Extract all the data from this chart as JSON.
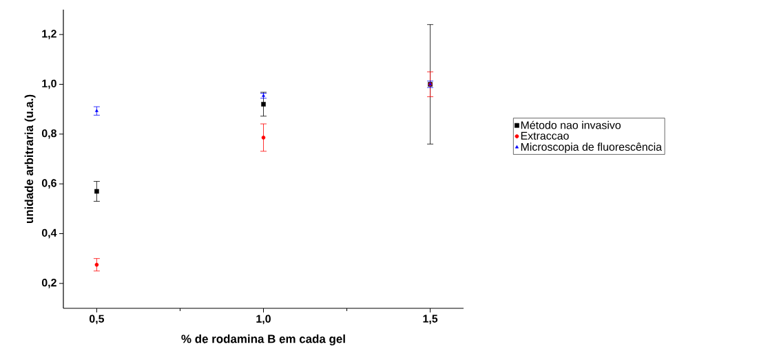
{
  "chart_data": {
    "type": "scatter",
    "xlabel": "% de rodamina B em cada gel",
    "ylabel": "unidade arbitraria (u.a.)",
    "x": [
      0.5,
      1.0,
      1.5
    ],
    "series": [
      {
        "name": "Método nao invasivo",
        "color": "#000000",
        "marker": "square",
        "values": [
          0.57,
          0.92,
          1.0
        ],
        "errors": [
          0.04,
          0.048,
          0.24
        ]
      },
      {
        "name": "Extraccao",
        "color": "#ff0000",
        "marker": "circle",
        "values": [
          0.275,
          0.786,
          1.0
        ],
        "errors": [
          0.025,
          0.055,
          0.05
        ]
      },
      {
        "name": "Microscopia de fluorescência",
        "color": "#0000ff",
        "marker": "triangle",
        "values": [
          0.893,
          0.954,
          1.0
        ],
        "errors": [
          0.017,
          0.01,
          0.013
        ]
      }
    ],
    "xlim": [
      0.4,
      1.6
    ],
    "ylim": [
      0.1,
      1.3
    ],
    "xticks": [
      {
        "value": 0.5,
        "label": "0,5"
      },
      {
        "value": 0.75,
        "label": null
      },
      {
        "value": 1.0,
        "label": "1,0"
      },
      {
        "value": 1.25,
        "label": null
      },
      {
        "value": 1.5,
        "label": "1,5"
      }
    ],
    "yticks": [
      {
        "value": 0.2,
        "label": "0,2"
      },
      {
        "value": 0.4,
        "label": "0,4"
      },
      {
        "value": 0.6,
        "label": "0,6"
      },
      {
        "value": 0.8,
        "label": "0,8"
      },
      {
        "value": 1.0,
        "label": "1,0"
      },
      {
        "value": 1.2,
        "label": "1,2"
      }
    ],
    "grid": false,
    "legend": "right"
  }
}
